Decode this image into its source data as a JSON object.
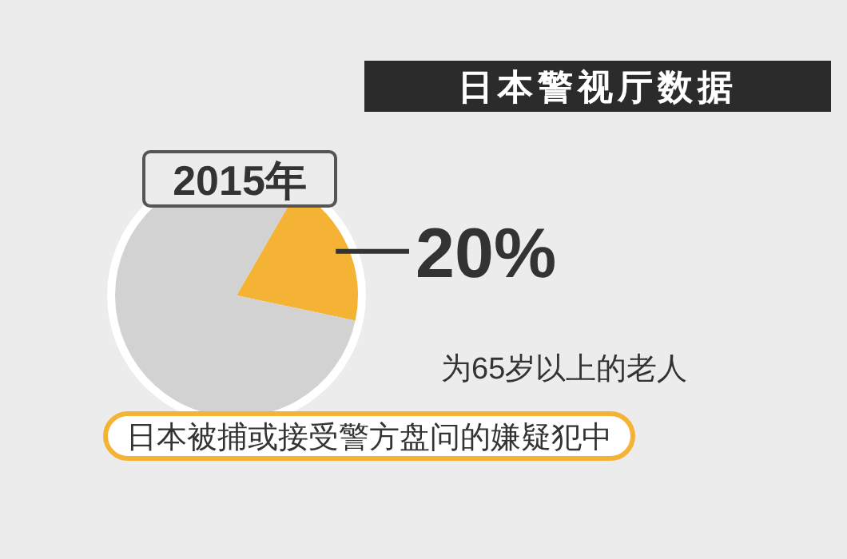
{
  "chart_data": {
    "type": "pie",
    "title": "日本警视厅数据",
    "subtitle": "2015年",
    "categories": [
      null,
      null
    ],
    "values": [
      20,
      80
    ],
    "colors": [
      "#f5b335",
      "#d2d2d2"
    ],
    "value_labels": [
      "20%",
      null
    ],
    "annotations": [
      "为65岁以上的老人",
      "日本被捕或接受警方盘问的嫌疑犯中"
    ]
  }
}
